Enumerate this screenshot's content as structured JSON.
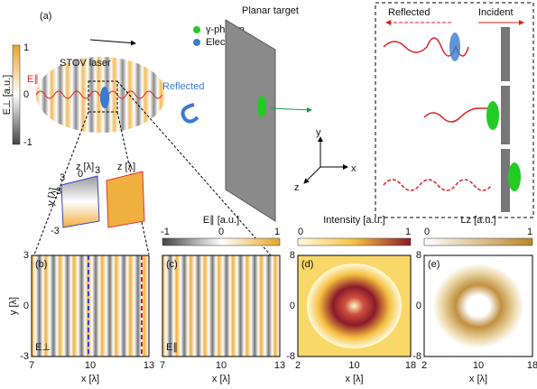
{
  "panel_a": {
    "label": "(a)",
    "laser_label": "STOV laser",
    "field_label": "E∥",
    "reflected_label": "Reflected",
    "legend": [
      "γ-photon",
      "Electron"
    ],
    "target_label": "Planar target",
    "colorbar": {
      "title": "E⊥ [a.u.]",
      "ticks": [
        "1",
        "0",
        "-1"
      ]
    },
    "axes3d": [
      "y",
      "x",
      "z"
    ],
    "inset": {
      "reflected": "Reflected",
      "incident": "Incident"
    },
    "cubes": {
      "z_label": "z [λ]",
      "z_ticks": [
        "3",
        "0",
        "3"
      ],
      "y_label": "y [λ]",
      "y_ticks": [
        "3",
        "-3"
      ]
    }
  },
  "panels": [
    {
      "label": "(b)",
      "field": "E⊥",
      "kind": "stripes",
      "xticks": [
        "7",
        "10",
        "13"
      ],
      "yticks": [
        "3",
        "0",
        "-3"
      ],
      "xlabel": "x [λ]",
      "ylabel": "y [λ]"
    },
    {
      "label": "(c)",
      "field": "E∥",
      "kind": "stripes",
      "xticks": [
        "7",
        "10",
        "13"
      ],
      "colorbar": {
        "title": "E∥ [a.u.]",
        "ticks": [
          "-1",
          "0",
          "1"
        ],
        "colors": [
          "#444444",
          "#ffffff",
          "#e8a525"
        ]
      },
      "xlabel": "x [λ]"
    },
    {
      "label": "(d)",
      "kind": "ring",
      "xticks": [
        "2",
        "10",
        "18"
      ],
      "yticks": [
        "8",
        "0",
        "-8"
      ],
      "xlabel": "x [λ]",
      "colorbar": {
        "title": "Intensity [a.u.]",
        "ticks": [
          "0",
          "1"
        ],
        "colors": [
          "#fffbe0",
          "#f5c040",
          "#8b1a2a"
        ]
      }
    },
    {
      "label": "(e)",
      "kind": "ring2",
      "xticks": [
        "2",
        "10",
        "18"
      ],
      "yticks": [
        "8",
        "0",
        "-8"
      ],
      "xlabel": "x [λ]",
      "colorbar": {
        "title": "Lz [a.u.]",
        "ticks": [
          "0",
          "1"
        ],
        "colors": [
          "#ffffff",
          "#b8862a"
        ]
      }
    }
  ]
}
